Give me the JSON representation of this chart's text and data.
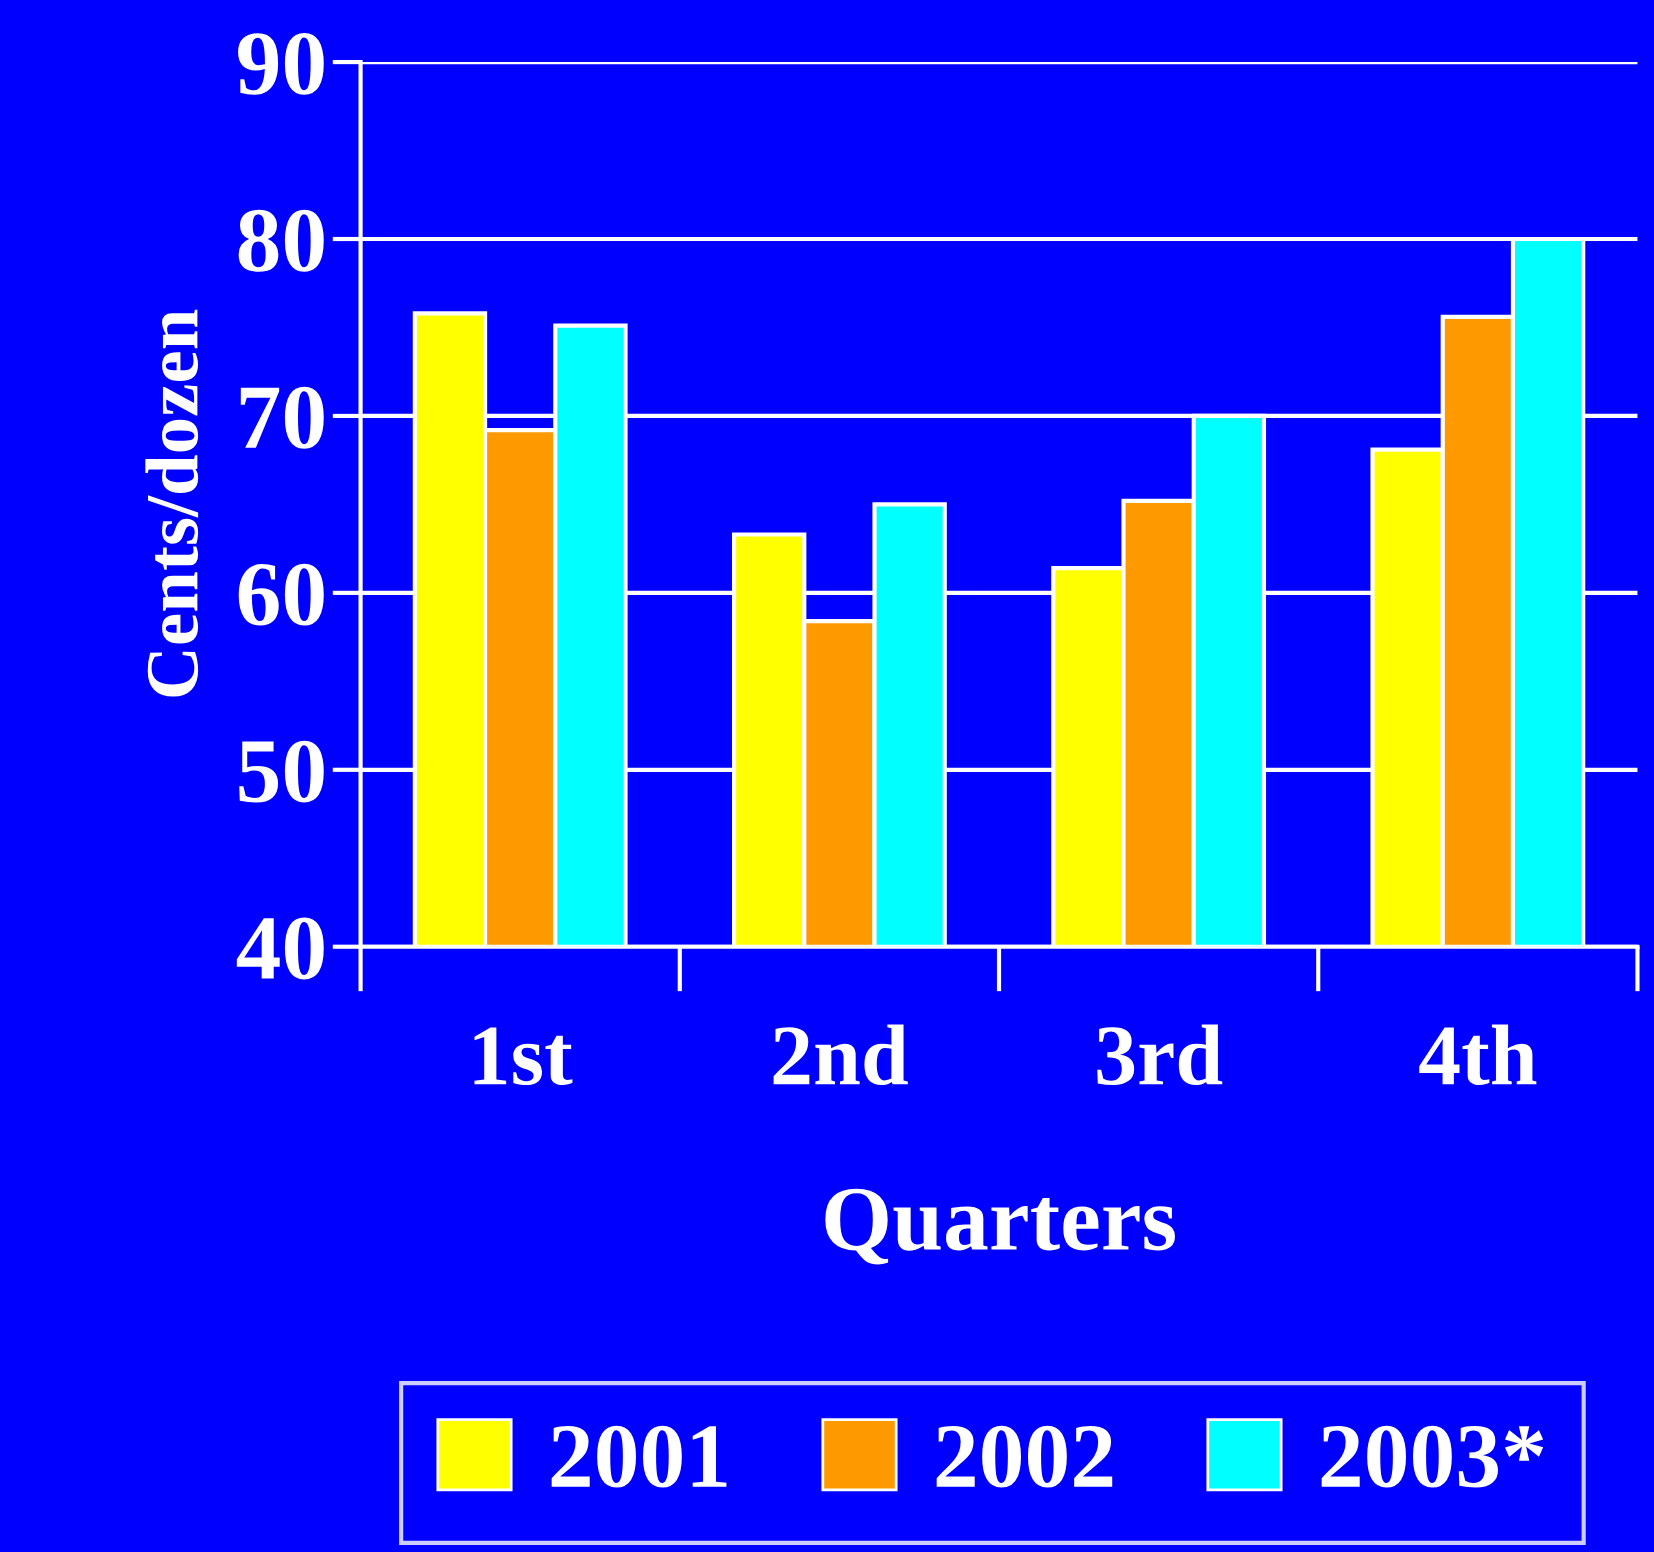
{
  "chart_data": {
    "type": "bar",
    "xlabel": "Quarters",
    "ylabel": "Cents/dozen",
    "categories": [
      "1st",
      "2nd",
      "3rd",
      "4th"
    ],
    "series": [
      {
        "name": "2001",
        "color": "#ffff00",
        "values": [
          75.8,
          63.3,
          61.4,
          68.1
        ]
      },
      {
        "name": "2002",
        "color": "#ff9900",
        "values": [
          69.2,
          58.4,
          65.2,
          75.6
        ]
      },
      {
        "name": "2003*",
        "color": "#00ffff",
        "values": [
          75.1,
          65.0,
          70.0,
          80.0
        ]
      }
    ],
    "ylim": [
      40,
      90
    ],
    "yticks": [
      40,
      50,
      60,
      70,
      80,
      90
    ],
    "grid": "y",
    "legend": "bottom"
  }
}
